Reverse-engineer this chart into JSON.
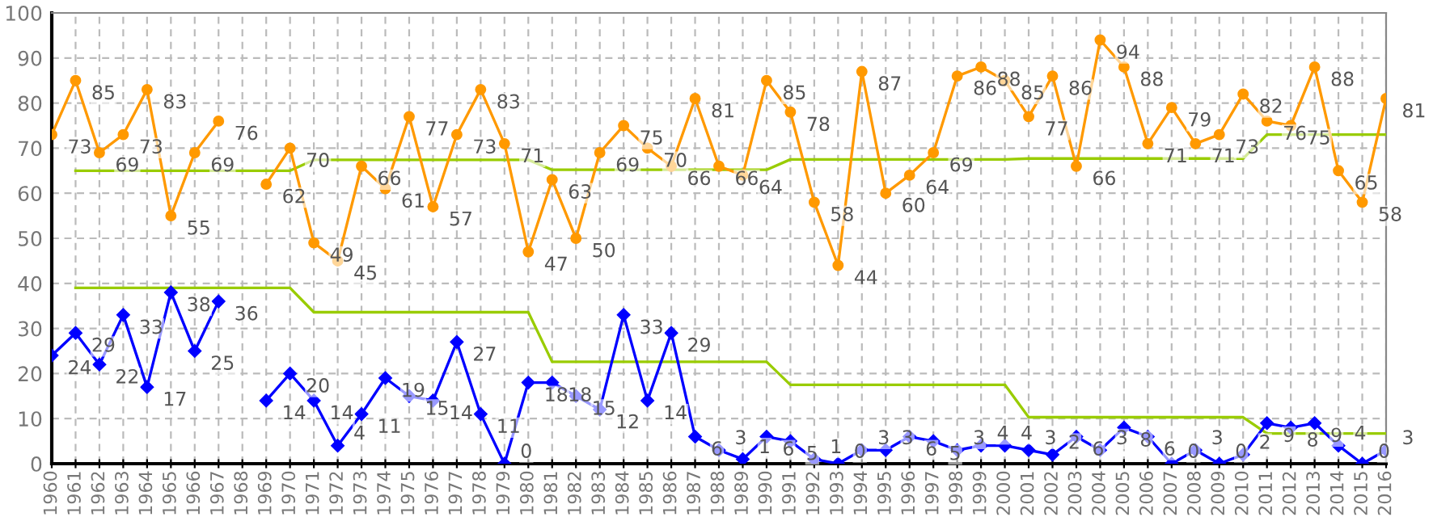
{
  "chart_data": {
    "type": "line",
    "categories": [
      "1960",
      "1961",
      "1962",
      "1963",
      "1964",
      "1965",
      "1966",
      "1967",
      "1968",
      "1969",
      "1970",
      "1971",
      "1972",
      "1973",
      "1974",
      "1975",
      "1976",
      "1977",
      "1978",
      "1979",
      "1980",
      "1981",
      "1982",
      "1983",
      "1984",
      "1985",
      "1986",
      "1987",
      "1988",
      "1989",
      "1990",
      "1991",
      "1992",
      "1993",
      "1994",
      "1995",
      "1996",
      "1997",
      "1998",
      "1999",
      "2000",
      "2001",
      "2002",
      "2003",
      "2004",
      "2005",
      "2006",
      "2007",
      "2008",
      "2009",
      "2010",
      "2011",
      "2012",
      "2013",
      "2014",
      "2015",
      "2016"
    ],
    "series": [
      {
        "color": "#99cc00",
        "marker": "none",
        "values": [
          null,
          65,
          65,
          65,
          65,
          65,
          65,
          65,
          65,
          65,
          65,
          67.4,
          67.4,
          67.4,
          67.4,
          67.4,
          67.4,
          67.4,
          67.4,
          67.4,
          67.4,
          65.2,
          65.2,
          65.2,
          65.2,
          65.2,
          65.2,
          65.2,
          65.2,
          65.2,
          65.2,
          67.5,
          67.5,
          67.5,
          67.5,
          67.5,
          67.5,
          67.5,
          67.5,
          67.5,
          67.5,
          67.7,
          67.7,
          67.7,
          67.7,
          67.7,
          67.7,
          67.7,
          67.7,
          67.7,
          67.7,
          73,
          73,
          73,
          73,
          73,
          73
        ]
      },
      {
        "color": "#99cc00",
        "marker": "none",
        "values": [
          null,
          39,
          39,
          39,
          39,
          39,
          39,
          39,
          39,
          39,
          39,
          33.6,
          33.6,
          33.6,
          33.6,
          33.6,
          33.6,
          33.6,
          33.6,
          33.6,
          33.6,
          22.6,
          22.6,
          22.6,
          22.6,
          22.6,
          22.6,
          22.6,
          22.6,
          22.6,
          22.6,
          17.5,
          17.5,
          17.5,
          17.5,
          17.5,
          17.5,
          17.5,
          17.5,
          17.5,
          17.5,
          10.3,
          10.3,
          10.3,
          10.3,
          10.3,
          10.3,
          10.3,
          10.3,
          10.3,
          10.3,
          6.7,
          6.7,
          6.7,
          6.7,
          6.7,
          6.7
        ]
      },
      {
        "color": "#ff9900",
        "marker": "circle",
        "values": [
          73,
          85,
          69,
          73,
          83,
          55,
          69,
          76,
          null,
          62,
          70,
          49,
          45,
          66,
          61,
          77,
          57,
          73,
          83,
          71,
          47,
          63,
          50,
          69,
          75,
          70,
          66,
          81,
          66,
          64,
          85,
          78,
          58,
          44,
          87,
          60,
          64,
          69,
          86,
          88,
          85,
          77,
          86,
          66,
          94,
          88,
          71,
          79,
          71,
          73,
          82,
          76,
          75,
          88,
          65,
          58,
          81
        ],
        "value_labels": [
          "73",
          "85",
          "69",
          "73",
          "83",
          "55",
          "69",
          "76",
          null,
          "62",
          "70",
          "49",
          "45",
          "66",
          "61",
          "77",
          "57",
          "73",
          "83",
          "71",
          "47",
          "63",
          "50",
          "69",
          "75",
          "70",
          "66",
          "81",
          "66",
          "64",
          "85",
          "78",
          "58",
          "44",
          "87",
          "60",
          "64",
          "69",
          "86",
          "88",
          "85",
          "77",
          "86",
          "66",
          "94",
          "88",
          "71",
          "79",
          "71",
          "73",
          "82",
          "76",
          "75",
          "88",
          "65",
          "58",
          "81"
        ]
      },
      {
        "color": "#0000ff",
        "marker": "diamond",
        "values": [
          24,
          29,
          22,
          33,
          17,
          38,
          25,
          36,
          null,
          14,
          20,
          14,
          4,
          11,
          19,
          15,
          14,
          27,
          11,
          0,
          18,
          18,
          15,
          12,
          33,
          14,
          29,
          6,
          3,
          1,
          6,
          5,
          1,
          0,
          3,
          3,
          6,
          5,
          3,
          4,
          4,
          3,
          2,
          6,
          3,
          8,
          6,
          0,
          3,
          0,
          2,
          9,
          8,
          9,
          4,
          0,
          3
        ],
        "value_labels": [
          "24",
          "29",
          "22",
          "33",
          "17",
          "38",
          "25",
          "36",
          null,
          "14",
          "20",
          "14",
          "4",
          "11",
          "19",
          "15",
          "14",
          "27",
          "11",
          "0",
          "18",
          "18",
          "15",
          "12",
          "33",
          "14",
          "29",
          "6",
          "3",
          "1",
          "6",
          "5",
          "1",
          "0",
          "3",
          "3",
          "6",
          "5",
          "3",
          "4",
          "4",
          "3",
          "2",
          "6",
          "3",
          "8",
          "6",
          "0",
          "3",
          "0",
          "2",
          "9",
          "8",
          "9",
          "4",
          "0",
          "3"
        ]
      }
    ],
    "ylim": [
      0,
      100
    ],
    "yticks": [
      0,
      10,
      20,
      30,
      40,
      50,
      60,
      70,
      80,
      90,
      100
    ],
    "grid": true,
    "line_style": "solid"
  }
}
